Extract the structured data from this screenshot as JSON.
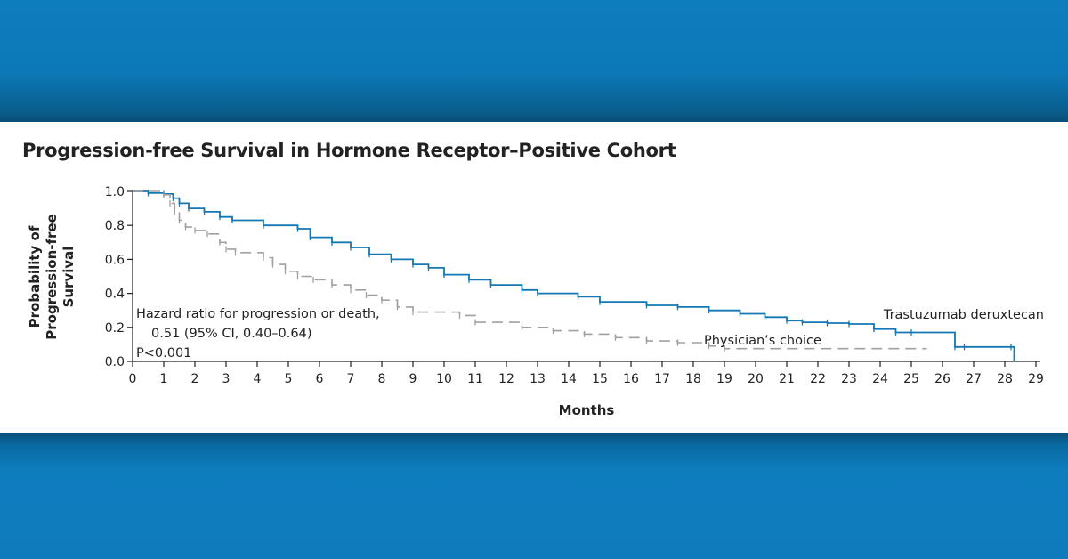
{
  "chart_data": {
    "type": "line",
    "title": "Progression-free Survival in Hormone Receptor–Positive Cohort",
    "xlabel": "Months",
    "ylabel_lines": [
      "Probability of",
      "Progression-free",
      "Survival"
    ],
    "xlim": [
      0,
      29
    ],
    "ylim": [
      0,
      1
    ],
    "x_ticks": [
      0,
      1,
      2,
      3,
      4,
      5,
      6,
      7,
      8,
      9,
      10,
      11,
      12,
      13,
      14,
      15,
      16,
      17,
      18,
      19,
      20,
      21,
      22,
      23,
      24,
      25,
      26,
      27,
      28,
      29
    ],
    "y_ticks": [
      "0.0",
      "0.2",
      "0.4",
      "0.6",
      "0.8",
      "1.0"
    ],
    "grid": false,
    "annotation_lines": [
      "Hazard ratio for progression or death,",
      "0.51 (95% CI, 0.40–0.64)",
      "P<0.001"
    ],
    "series": [
      {
        "name": "Trastuzumab deruxtecan",
        "color": "#1478b4",
        "dash": "solid",
        "label_position": "end",
        "x": [
          0,
          0.5,
          1.0,
          1.3,
          1.5,
          1.8,
          2.3,
          2.8,
          3.2,
          4.2,
          5.3,
          5.7,
          6.4,
          7.0,
          7.6,
          8.3,
          9.0,
          9.5,
          10.0,
          10.8,
          11.5,
          12.5,
          13.0,
          14.3,
          15.0,
          16.5,
          17.5,
          18.5,
          19.5,
          20.3,
          21.0,
          21.5,
          22.3,
          23.0,
          23.8,
          24.5,
          25.0,
          26.4,
          26.7,
          28.2,
          28.3
        ],
        "y": [
          1.0,
          0.99,
          0.985,
          0.96,
          0.93,
          0.9,
          0.88,
          0.85,
          0.83,
          0.8,
          0.78,
          0.73,
          0.7,
          0.67,
          0.63,
          0.6,
          0.57,
          0.55,
          0.51,
          0.48,
          0.45,
          0.42,
          0.4,
          0.38,
          0.35,
          0.33,
          0.32,
          0.3,
          0.28,
          0.26,
          0.24,
          0.23,
          0.225,
          0.22,
          0.19,
          0.17,
          0.17,
          0.085,
          0.085,
          0.085,
          0.0
        ]
      },
      {
        "name": "Physician’s choice",
        "color": "#a0a0a0",
        "dash": "dashed",
        "label_position": "middle",
        "x": [
          0,
          1.0,
          1.2,
          1.35,
          1.5,
          1.7,
          2.0,
          2.4,
          2.8,
          3.0,
          3.3,
          4.2,
          4.5,
          4.9,
          5.3,
          5.8,
          6.4,
          7.0,
          7.5,
          8.0,
          8.5,
          9.0,
          10.5,
          11.0,
          12.5,
          13.5,
          14.5,
          15.5,
          16.5,
          17.5,
          18.5,
          19.0,
          25.5
        ],
        "y": [
          1.0,
          0.98,
          0.93,
          0.88,
          0.83,
          0.79,
          0.77,
          0.75,
          0.7,
          0.66,
          0.64,
          0.61,
          0.57,
          0.53,
          0.5,
          0.48,
          0.45,
          0.42,
          0.39,
          0.36,
          0.32,
          0.29,
          0.27,
          0.23,
          0.2,
          0.18,
          0.16,
          0.14,
          0.12,
          0.11,
          0.09,
          0.075,
          0.075
        ]
      }
    ]
  }
}
